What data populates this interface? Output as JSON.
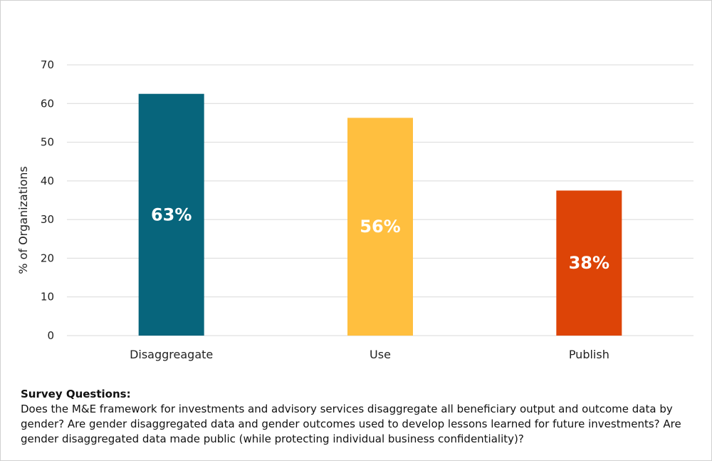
{
  "chart_data": {
    "type": "bar",
    "categories": [
      "Disaggreagate",
      "Use",
      "Publish"
    ],
    "values": [
      62.5,
      56.3,
      37.5
    ],
    "data_labels": [
      "63%",
      "56%",
      "38%"
    ],
    "colors": [
      "#07657C",
      "#FFBF3F",
      "#DD4407"
    ],
    "ylabel": "% of Organizations",
    "xlabel": "",
    "ylim": [
      0,
      70
    ],
    "yticks": [
      0,
      10,
      20,
      30,
      40,
      50,
      60,
      70
    ],
    "grid": true,
    "gridline_color": "#d9d9d9"
  },
  "notes": {
    "heading": "Survey Questions:",
    "body": "Does the M&E framework for investments and advisory services disaggregate all beneficiary output and outcome data by gender? Are gender disaggregated data and gender outcomes used to develop lessons learned for future investments? Are gender disaggregated data made public (while protecting individual business confidentiality)?"
  }
}
